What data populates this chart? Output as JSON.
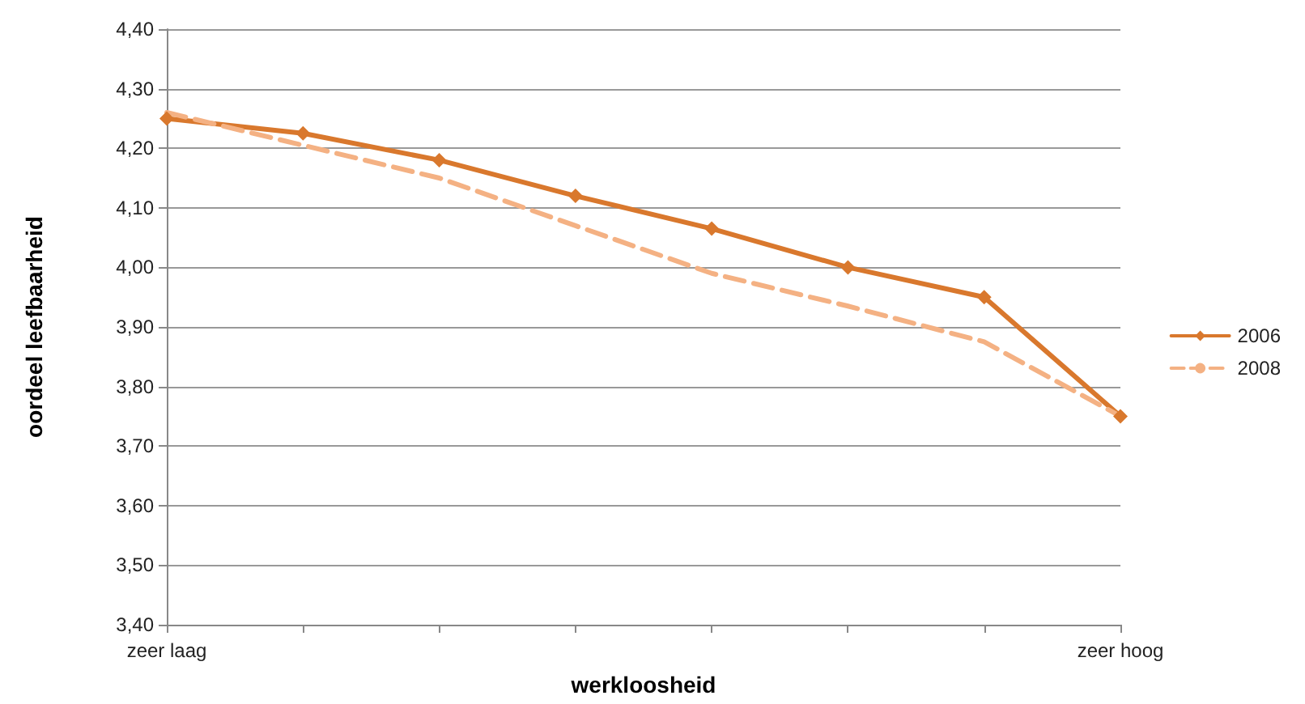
{
  "chart_data": {
    "type": "line",
    "xlabel": "werkloosheid",
    "ylabel": "oordeel leefbaarheid",
    "categories": [
      "zeer laag",
      null,
      null,
      null,
      null,
      null,
      null,
      "zeer hoog"
    ],
    "series": [
      {
        "name": "2006",
        "color": "#d9782d",
        "marker": "diamond",
        "line_style": "solid",
        "values": [
          4.25,
          4.225,
          4.18,
          4.12,
          4.065,
          4.0,
          3.95,
          3.75
        ]
      },
      {
        "name": "2008",
        "color": "#f4b183",
        "marker": "none",
        "line_style": "dashed",
        "values": [
          4.26,
          4.205,
          4.15,
          4.07,
          3.99,
          3.935,
          3.875,
          3.75
        ]
      }
    ],
    "ylim": [
      3.4,
      4.4
    ],
    "yticks": [
      {
        "value": 3.4,
        "label": "3,40"
      },
      {
        "value": 3.5,
        "label": "3,50"
      },
      {
        "value": 3.6,
        "label": "3,60"
      },
      {
        "value": 3.7,
        "label": "3,70"
      },
      {
        "value": 3.8,
        "label": "3,80"
      },
      {
        "value": 3.9,
        "label": "3,90"
      },
      {
        "value": 4.0,
        "label": "4,00"
      },
      {
        "value": 4.1,
        "label": "4,10"
      },
      {
        "value": 4.2,
        "label": "4,20"
      },
      {
        "value": 4.3,
        "label": "4,30"
      },
      {
        "value": 4.4,
        "label": "4,40"
      }
    ],
    "grid": "y",
    "legend": "right"
  }
}
